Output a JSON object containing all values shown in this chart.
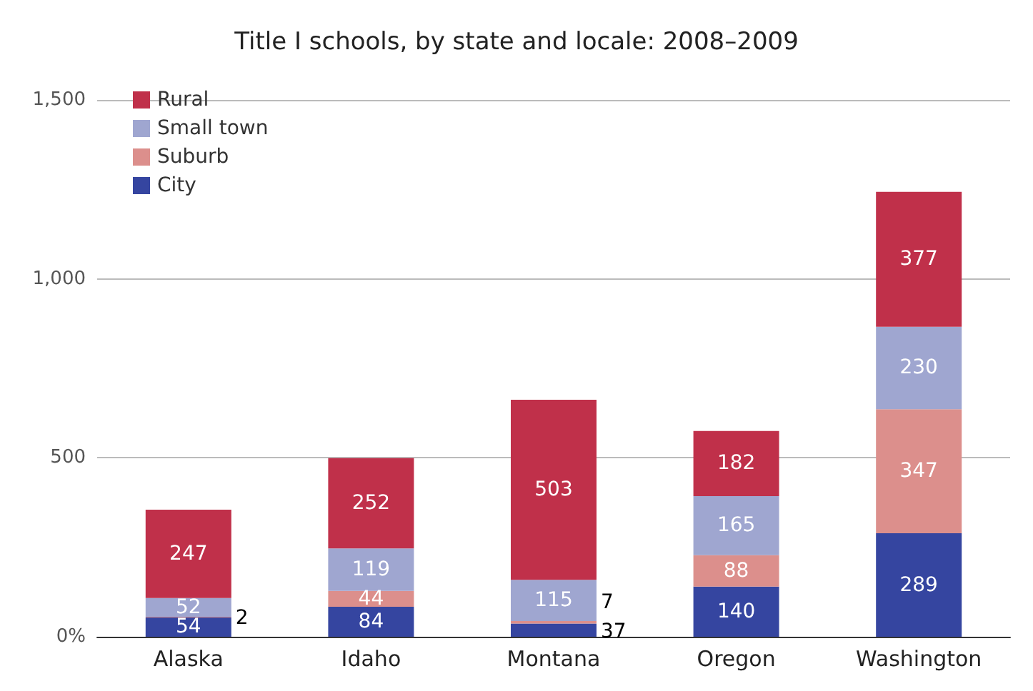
{
  "chart_data": {
    "type": "bar",
    "title": "Title I schools, by state and locale: 2008–2009",
    "categories": [
      "Alaska",
      "Idaho",
      "Montana",
      "Oregon",
      "Washington"
    ],
    "stacked": true,
    "data_labels": true,
    "grid": "y",
    "legend": "top left",
    "ylim": [
      0,
      1500
    ],
    "yticks": [
      {
        "value": 0,
        "label": "0%"
      },
      500,
      {
        "value": 1000,
        "label": "1,000"
      },
      {
        "value": 1500,
        "label": "1,500"
      }
    ],
    "series": [
      {
        "name": "City",
        "color": "#3545a0",
        "values": [
          54,
          84,
          37,
          140,
          289
        ]
      },
      {
        "name": "Suburb",
        "color": "#dc8f8c",
        "values": [
          2,
          44,
          7,
          88,
          347
        ]
      },
      {
        "name": "Small town",
        "color": "#9fa6d0",
        "values": [
          52,
          119,
          115,
          165,
          230
        ]
      },
      {
        "name": "Rural",
        "color": "#c0304a",
        "values": [
          247,
          252,
          503,
          182,
          377
        ]
      }
    ]
  }
}
